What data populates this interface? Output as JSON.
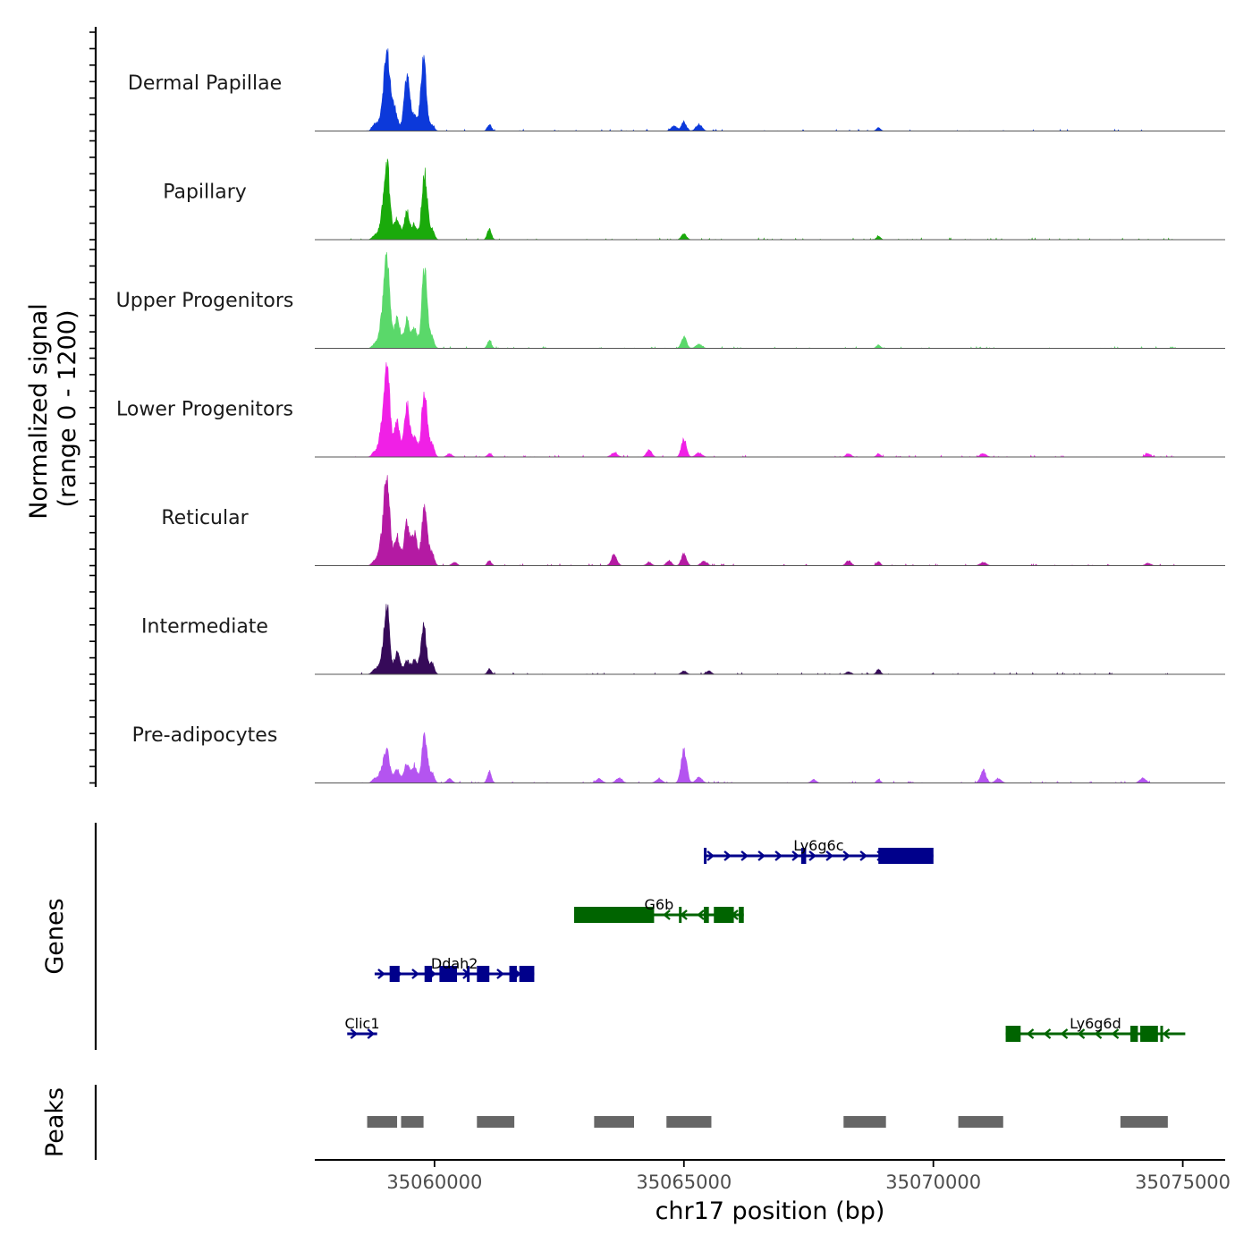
{
  "chart_data": {
    "type": "area",
    "title": "",
    "chromosome": "chr17",
    "xlabel": "chr17 position (bp)",
    "ylabel_line1": "Normalized signal",
    "ylabel_line2": "(range 0 - 1200)",
    "ylim": [
      0,
      1200
    ],
    "xlim": [
      35057600,
      35075850
    ],
    "x_ticks": [
      35060000,
      35065000,
      35070000,
      35075000
    ],
    "x_tick_labels": [
      "35060000",
      "35065000",
      "35070000",
      "35075000"
    ],
    "genes_label": "Genes",
    "peaks_label": "Peaks",
    "peaks_color": "#666666",
    "shared_peaks": [
      {
        "name": "p1",
        "center": 35059000,
        "height": 1000,
        "width": 70
      },
      {
        "name": "p2",
        "center": 35059500,
        "height": 700,
        "width": 60
      },
      {
        "name": "p3",
        "center": 35059850,
        "height": 900,
        "width": 60
      }
    ],
    "series": [
      {
        "name": "Dermal Papillae",
        "color": "#0c39da",
        "peaks": [
          {
            "center": 35058800,
            "height": 80,
            "width": 50
          },
          {
            "center": 35058950,
            "height": 180,
            "width": 60
          },
          {
            "center": 35059050,
            "height": 880,
            "width": 60
          },
          {
            "center": 35059200,
            "height": 260,
            "width": 60
          },
          {
            "center": 35059450,
            "height": 700,
            "width": 55
          },
          {
            "center": 35059600,
            "height": 160,
            "width": 50
          },
          {
            "center": 35059780,
            "height": 860,
            "width": 55
          },
          {
            "center": 35059950,
            "height": 70,
            "width": 45
          },
          {
            "center": 35061100,
            "height": 80,
            "width": 40
          },
          {
            "center": 35064800,
            "height": 60,
            "width": 60
          },
          {
            "center": 35065000,
            "height": 110,
            "width": 50
          },
          {
            "center": 35065300,
            "height": 80,
            "width": 60
          },
          {
            "center": 35068900,
            "height": 40,
            "width": 40
          }
        ]
      },
      {
        "name": "Papillary",
        "color": "#1aaa0b",
        "peaks": [
          {
            "center": 35058800,
            "height": 50,
            "width": 50
          },
          {
            "center": 35058950,
            "height": 220,
            "width": 60
          },
          {
            "center": 35059050,
            "height": 860,
            "width": 55
          },
          {
            "center": 35059250,
            "height": 250,
            "width": 60
          },
          {
            "center": 35059450,
            "height": 330,
            "width": 55
          },
          {
            "center": 35059600,
            "height": 180,
            "width": 50
          },
          {
            "center": 35059800,
            "height": 780,
            "width": 55
          },
          {
            "center": 35059950,
            "height": 120,
            "width": 45
          },
          {
            "center": 35061100,
            "height": 130,
            "width": 40
          },
          {
            "center": 35065000,
            "height": 70,
            "width": 50
          },
          {
            "center": 35068900,
            "height": 40,
            "width": 40
          }
        ]
      },
      {
        "name": "Upper Progenitors",
        "color": "#5ad86a",
        "peaks": [
          {
            "center": 35058800,
            "height": 50,
            "width": 50
          },
          {
            "center": 35058950,
            "height": 300,
            "width": 60
          },
          {
            "center": 35059050,
            "height": 1040,
            "width": 55
          },
          {
            "center": 35059250,
            "height": 350,
            "width": 60
          },
          {
            "center": 35059450,
            "height": 340,
            "width": 55
          },
          {
            "center": 35059600,
            "height": 220,
            "width": 50
          },
          {
            "center": 35059800,
            "height": 960,
            "width": 55
          },
          {
            "center": 35059950,
            "height": 120,
            "width": 45
          },
          {
            "center": 35061100,
            "height": 90,
            "width": 40
          },
          {
            "center": 35065000,
            "height": 140,
            "width": 50
          },
          {
            "center": 35065300,
            "height": 50,
            "width": 60
          },
          {
            "center": 35068900,
            "height": 40,
            "width": 40
          }
        ]
      },
      {
        "name": "Lower Progenitors",
        "color": "#f020e6",
        "peaks": [
          {
            "center": 35058800,
            "height": 60,
            "width": 50
          },
          {
            "center": 35058950,
            "height": 320,
            "width": 60
          },
          {
            "center": 35059050,
            "height": 1040,
            "width": 55
          },
          {
            "center": 35059250,
            "height": 420,
            "width": 60
          },
          {
            "center": 35059450,
            "height": 620,
            "width": 55
          },
          {
            "center": 35059600,
            "height": 250,
            "width": 50
          },
          {
            "center": 35059800,
            "height": 820,
            "width": 55
          },
          {
            "center": 35059950,
            "height": 150,
            "width": 45
          },
          {
            "center": 35060300,
            "height": 40,
            "width": 50
          },
          {
            "center": 35061100,
            "height": 40,
            "width": 40
          },
          {
            "center": 35063600,
            "height": 50,
            "width": 60
          },
          {
            "center": 35064300,
            "height": 90,
            "width": 50
          },
          {
            "center": 35065000,
            "height": 220,
            "width": 50
          },
          {
            "center": 35065300,
            "height": 50,
            "width": 60
          },
          {
            "center": 35068300,
            "height": 40,
            "width": 50
          },
          {
            "center": 35068900,
            "height": 40,
            "width": 40
          },
          {
            "center": 35071000,
            "height": 40,
            "width": 60
          },
          {
            "center": 35074300,
            "height": 40,
            "width": 50
          }
        ]
      },
      {
        "name": "Reticular",
        "color": "#b41aa3",
        "peaks": [
          {
            "center": 35058800,
            "height": 60,
            "width": 50
          },
          {
            "center": 35058950,
            "height": 300,
            "width": 60
          },
          {
            "center": 35059050,
            "height": 1000,
            "width": 55
          },
          {
            "center": 35059250,
            "height": 350,
            "width": 60
          },
          {
            "center": 35059450,
            "height": 520,
            "width": 55
          },
          {
            "center": 35059600,
            "height": 380,
            "width": 50
          },
          {
            "center": 35059800,
            "height": 720,
            "width": 55
          },
          {
            "center": 35059950,
            "height": 150,
            "width": 45
          },
          {
            "center": 35060400,
            "height": 40,
            "width": 50
          },
          {
            "center": 35061100,
            "height": 60,
            "width": 40
          },
          {
            "center": 35063600,
            "height": 130,
            "width": 55
          },
          {
            "center": 35064300,
            "height": 40,
            "width": 50
          },
          {
            "center": 35064700,
            "height": 60,
            "width": 50
          },
          {
            "center": 35065000,
            "height": 140,
            "width": 50
          },
          {
            "center": 35065400,
            "height": 50,
            "width": 60
          },
          {
            "center": 35068300,
            "height": 60,
            "width": 50
          },
          {
            "center": 35068900,
            "height": 50,
            "width": 40
          },
          {
            "center": 35071000,
            "height": 40,
            "width": 60
          },
          {
            "center": 35074300,
            "height": 30,
            "width": 50
          }
        ]
      },
      {
        "name": "Intermediate",
        "color": "#360a59",
        "peaks": [
          {
            "center": 35058800,
            "height": 60,
            "width": 50
          },
          {
            "center": 35058950,
            "height": 200,
            "width": 60
          },
          {
            "center": 35059050,
            "height": 780,
            "width": 50
          },
          {
            "center": 35059250,
            "height": 250,
            "width": 60
          },
          {
            "center": 35059450,
            "height": 160,
            "width": 55
          },
          {
            "center": 35059600,
            "height": 160,
            "width": 50
          },
          {
            "center": 35059780,
            "height": 580,
            "width": 55
          },
          {
            "center": 35059950,
            "height": 130,
            "width": 45
          },
          {
            "center": 35061100,
            "height": 60,
            "width": 40
          },
          {
            "center": 35065000,
            "height": 40,
            "width": 50
          },
          {
            "center": 35065500,
            "height": 40,
            "width": 50
          },
          {
            "center": 35068300,
            "height": 30,
            "width": 50
          },
          {
            "center": 35068900,
            "height": 60,
            "width": 40
          }
        ]
      },
      {
        "name": "Pre-adipocytes",
        "color": "#b454f0",
        "peaks": [
          {
            "center": 35058800,
            "height": 50,
            "width": 50
          },
          {
            "center": 35058950,
            "height": 150,
            "width": 60
          },
          {
            "center": 35059050,
            "height": 340,
            "width": 55
          },
          {
            "center": 35059250,
            "height": 160,
            "width": 60
          },
          {
            "center": 35059450,
            "height": 240,
            "width": 55
          },
          {
            "center": 35059600,
            "height": 200,
            "width": 50
          },
          {
            "center": 35059800,
            "height": 560,
            "width": 55
          },
          {
            "center": 35059950,
            "height": 120,
            "width": 45
          },
          {
            "center": 35060300,
            "height": 50,
            "width": 50
          },
          {
            "center": 35061100,
            "height": 140,
            "width": 40
          },
          {
            "center": 35063300,
            "height": 50,
            "width": 60
          },
          {
            "center": 35063700,
            "height": 60,
            "width": 60
          },
          {
            "center": 35064500,
            "height": 50,
            "width": 60
          },
          {
            "center": 35065000,
            "height": 400,
            "width": 55
          },
          {
            "center": 35065300,
            "height": 70,
            "width": 60
          },
          {
            "center": 35067600,
            "height": 40,
            "width": 50
          },
          {
            "center": 35068900,
            "height": 40,
            "width": 40
          },
          {
            "center": 35071000,
            "height": 150,
            "width": 55
          },
          {
            "center": 35071300,
            "height": 50,
            "width": 60
          },
          {
            "center": 35074200,
            "height": 60,
            "width": 60
          }
        ]
      }
    ],
    "genes": [
      {
        "name": "Ly6g6c",
        "strand": "+",
        "color": "#00008b",
        "row": 0,
        "start": 35065400,
        "end": 35070000,
        "exons": [
          [
            35065400,
            35065450
          ],
          [
            35067350,
            35067450
          ],
          [
            35068900,
            35070000
          ]
        ],
        "thick": [
          35068900,
          35070000
        ]
      },
      {
        "name": "G6b",
        "strand": "-",
        "color": "#006400",
        "row": 1,
        "start": 35062800,
        "end": 35066200,
        "exons": [
          [
            35062800,
            35064400
          ],
          [
            35064900,
            35064950
          ],
          [
            35065400,
            35065500
          ],
          [
            35065600,
            35066000
          ],
          [
            35066100,
            35066200
          ]
        ],
        "thick": [
          35062800,
          35064400
        ]
      },
      {
        "name": "Ddah2",
        "strand": "+",
        "color": "#00008b",
        "row": 2,
        "start": 35058800,
        "end": 35062000,
        "exons": [
          [
            35059100,
            35059300
          ],
          [
            35059800,
            35059950
          ],
          [
            35060100,
            35060450
          ],
          [
            35060650,
            35060700
          ],
          [
            35060850,
            35061100
          ],
          [
            35061500,
            35061650
          ],
          [
            35061700,
            35062000
          ]
        ],
        "thick": [
          35060100,
          35060450
        ]
      },
      {
        "name": "Clic1",
        "strand": "+",
        "color": "#00008b",
        "row": 3,
        "start": 35058250,
        "end": 35058850,
        "exons": [],
        "thick": null
      },
      {
        "name": "Ly6g6d",
        "strand": "-",
        "color": "#006400",
        "row": 3,
        "start": 35071450,
        "end": 35075050,
        "exons": [
          [
            35071450,
            35071750
          ],
          [
            35073950,
            35074100
          ],
          [
            35074150,
            35074500
          ],
          [
            35074550,
            35074600
          ]
        ],
        "thick": [
          35074150,
          35074500
        ]
      }
    ],
    "peak_regions": [
      [
        35058650,
        35059250
      ],
      [
        35059330,
        35059780
      ],
      [
        35060850,
        35061600
      ],
      [
        35063200,
        35064000
      ],
      [
        35064650,
        35065550
      ],
      [
        35068200,
        35069050
      ],
      [
        35070500,
        35071400
      ],
      [
        35073750,
        35074700
      ]
    ]
  }
}
